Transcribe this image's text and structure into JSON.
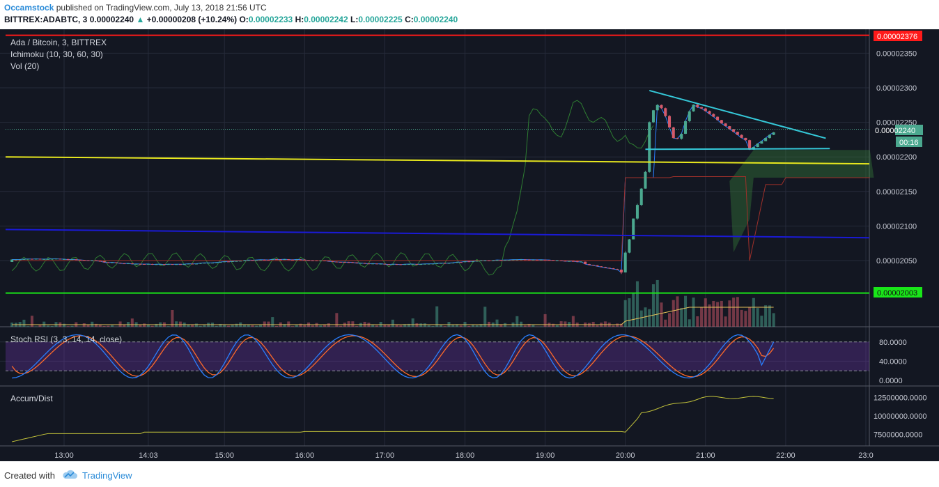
{
  "header": {
    "author": "Occamstock",
    "published": "published on TradingView.com, July 13, 2018 21:56 UTC",
    "symbol": "BITTREX:ADABTC, 3",
    "last": "0.00002240",
    "change_arrow": "▲",
    "change": "+0.00000208 (+10.24%)",
    "o_label": "O:",
    "o": "0.00002233",
    "h_label": "H:",
    "h": "0.00002242",
    "l_label": "L:",
    "l": "0.00002225",
    "c_label": "C:",
    "c": "0.00002240"
  },
  "legend": {
    "pair": "Ada / Bitcoin, 3, BITTREX",
    "ichimoku": "Ichimoku (10, 30, 60, 30)",
    "vol": "Vol (20)",
    "stoch": "Stoch RSI (3, 3, 14, 14, close)",
    "accum": "Accum/Dist"
  },
  "price_tags": {
    "red": "0.00002376",
    "current": "0.00002240",
    "timer": "00:16",
    "green": "0.00002003"
  },
  "footer": {
    "created_with": "Created with",
    "brand": "TradingView"
  },
  "colors": {
    "background": "#131722",
    "up": "#4ba88f",
    "down": "#d45a6a",
    "resistance_red": "#ff1a1a",
    "support_green": "#19e619",
    "yellow_line": "#e8e81e",
    "blue_line": "#1a1ad6",
    "triangle_cyan": "#35c9d9",
    "stoch_k": "#2a7fff",
    "stoch_d": "#ff6a2a",
    "accum": "#c2c23a"
  },
  "chart_data": [
    {
      "type": "candlestick",
      "title": "Ada / Bitcoin, 3, BITTREX",
      "x_ticks": [
        "13:00",
        "14:03",
        "15:00",
        "16:00",
        "17:00",
        "18:00",
        "19:00",
        "20:00",
        "21:00",
        "22:00",
        "23:0"
      ],
      "y_ticks": [
        "0.00002350",
        "0.00002300",
        "0.00002250",
        "0.00002200",
        "0.00002150",
        "0.00002100",
        "0.00002050"
      ],
      "ylim": [
        2e-05,
        2.4e-05
      ],
      "horizontal_levels": [
        {
          "color": "red",
          "value": 2.376e-05
        },
        {
          "color": "green",
          "value": 2.003e-05
        }
      ],
      "sloped_lines": [
        {
          "color": "yellow",
          "from": 2.2e-05,
          "to": 2.19e-05
        },
        {
          "color": "blue",
          "from": 2.095e-05,
          "to": 2.083e-05
        }
      ],
      "segments": [
        {
          "time": "12:20-19:55",
          "open": 2.048e-05,
          "close": 2.04e-05,
          "low": 2.028e-05,
          "high": 2.068e-05
        },
        {
          "time": "20:00-20:15",
          "open": 2.035e-05,
          "close": 2.195e-05,
          "low": 2.03e-05,
          "high": 2.205e-05
        },
        {
          "time": "20:15-21:00",
          "open": 2.2e-05,
          "close": 2.27e-05,
          "low": 2.2e-05,
          "high": 2.3e-05
        },
        {
          "time": "21:00-21:55",
          "open": 2.275e-05,
          "close": 2.24e-05,
          "low": 2.2e-05,
          "high": 2.305e-05
        }
      ]
    },
    {
      "type": "line",
      "title": "Stoch RSI (3, 3, 14, 14, close)",
      "y_ticks": [
        "80.0000",
        "40.0000",
        "0.0000"
      ],
      "ylim": [
        0,
        100
      ]
    },
    {
      "type": "line",
      "title": "Accum/Dist",
      "y_ticks": [
        "12500000.0000",
        "10000000.0000",
        "7500000.0000"
      ],
      "ylim": [
        6500000,
        13500000
      ]
    }
  ]
}
